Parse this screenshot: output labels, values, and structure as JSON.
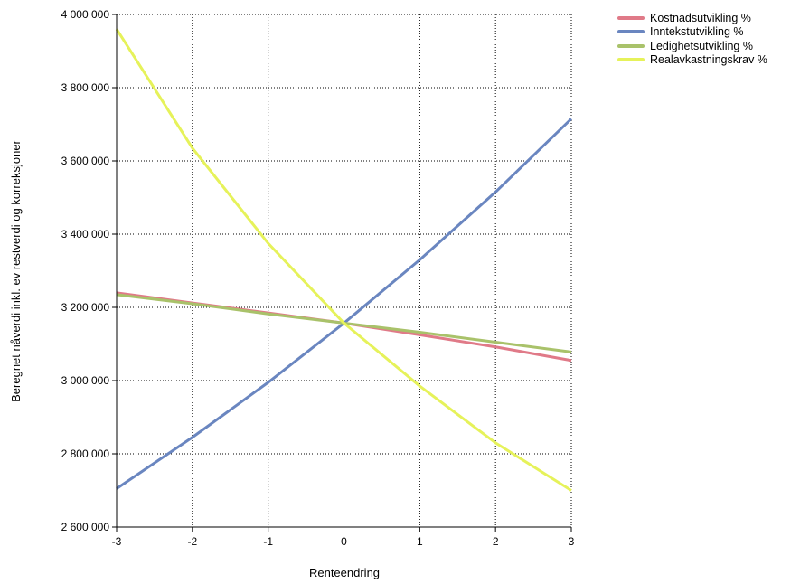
{
  "chart_data": {
    "type": "line",
    "title": "",
    "xlabel": "Renteendring",
    "ylabel": "Beregnet nåverdi inkl. ev restverdi og korreksjoner",
    "xlim": [
      -3,
      3
    ],
    "ylim": [
      2600000,
      4000000
    ],
    "x_ticks": [
      -3,
      -2,
      -1,
      0,
      1,
      2,
      3
    ],
    "x_tick_labels": [
      "-3",
      "-2",
      "-1",
      "0",
      "1",
      "2",
      "3"
    ],
    "y_ticks": [
      2600000,
      2800000,
      3000000,
      3200000,
      3400000,
      3600000,
      3800000,
      4000000
    ],
    "y_tick_labels": [
      "2 600 000",
      "2 800 000",
      "3 000 000",
      "3 200 000",
      "3 400 000",
      "3 600 000",
      "3 800 000",
      "4 000 000"
    ],
    "grid": true,
    "legend_position": "top-right",
    "x": [
      -3,
      -2,
      -1,
      0,
      1,
      2,
      3
    ],
    "series": [
      {
        "name": "Kostnadsutvikling %",
        "color": "#e07a88",
        "values": [
          3240000,
          3212000,
          3185000,
          3157000,
          3125000,
          3092000,
          3055000
        ]
      },
      {
        "name": "Inntekstutvikling %",
        "color": "#6a86c0",
        "values": [
          2705000,
          2845000,
          2995000,
          3157000,
          3330000,
          3515000,
          3715000
        ]
      },
      {
        "name": "Ledighetsutvikling %",
        "color": "#a9c26a",
        "values": [
          3235000,
          3210000,
          3182000,
          3157000,
          3132000,
          3105000,
          3078000
        ]
      },
      {
        "name": "Realavkastningskrav %",
        "color": "#e6f25a",
        "values": [
          3960000,
          3635000,
          3375000,
          3157000,
          2985000,
          2830000,
          2700000
        ]
      }
    ]
  }
}
